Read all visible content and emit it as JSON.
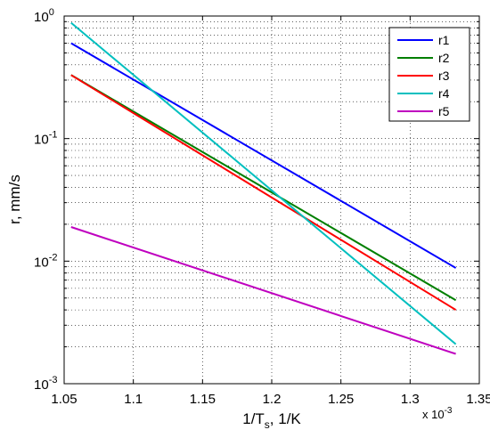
{
  "chart_data": {
    "type": "line",
    "xlabel": "1/T",
    "xlabel_sub": "s",
    "xlabel_suffix": ", 1/K",
    "ylabel": "r, mm/s",
    "x_multiplier_label": "x 10",
    "x_multiplier_exponent": "-3",
    "xlim": [
      1.05,
      1.35
    ],
    "ylim": [
      0.001,
      1
    ],
    "yscale": "log",
    "grid": true,
    "legend_position": "top-right",
    "x_ticks": [
      {
        "value": 1.05,
        "label": "1.05"
      },
      {
        "value": 1.1,
        "label": "1.1"
      },
      {
        "value": 1.15,
        "label": "1.15"
      },
      {
        "value": 1.2,
        "label": "1.2"
      },
      {
        "value": 1.25,
        "label": "1.25"
      },
      {
        "value": 1.3,
        "label": "1.3"
      },
      {
        "value": 1.35,
        "label": "1.35"
      }
    ],
    "y_ticks": [
      {
        "value": 0.001,
        "base": "10",
        "exp": "-3"
      },
      {
        "value": 0.01,
        "base": "10",
        "exp": "-2"
      },
      {
        "value": 0.1,
        "base": "10",
        "exp": "-1"
      },
      {
        "value": 1,
        "base": "10",
        "exp": "0"
      }
    ],
    "series": [
      {
        "name": "r1",
        "color": "#0000ff",
        "x": [
          1.055,
          1.333
        ],
        "y": [
          0.6,
          0.0088
        ]
      },
      {
        "name": "r2",
        "color": "#007f00",
        "x": [
          1.055,
          1.333
        ],
        "y": [
          0.33,
          0.0048
        ]
      },
      {
        "name": "r3",
        "color": "#ff0000",
        "x": [
          1.055,
          1.333
        ],
        "y": [
          0.33,
          0.004
        ]
      },
      {
        "name": "r4",
        "color": "#00bfbf",
        "x": [
          1.055,
          1.333
        ],
        "y": [
          0.88,
          0.0021
        ]
      },
      {
        "name": "r5",
        "color": "#bf00bf",
        "x": [
          1.055,
          1.333
        ],
        "y": [
          0.019,
          0.00175
        ]
      }
    ]
  }
}
